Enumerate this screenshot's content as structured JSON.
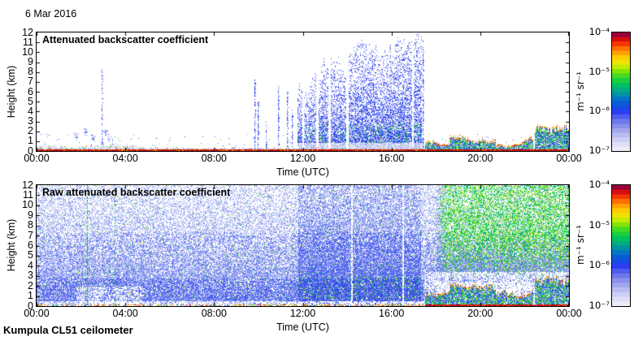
{
  "window": {
    "background": "#ffffff"
  },
  "header": {
    "date_label": "6 Mar 2016"
  },
  "footer": {
    "station_label": "Kumpula CL51 ceilometer"
  },
  "colormap": {
    "unit": "m⁻¹ sr⁻¹",
    "stops": [
      [
        0.0,
        "#F4F4FC"
      ],
      [
        0.05,
        "#E2E2F8"
      ],
      [
        0.12,
        "#C2C4F2"
      ],
      [
        0.19,
        "#989EEC"
      ],
      [
        0.26,
        "#6672EC"
      ],
      [
        0.33,
        "#2A3CF2"
      ],
      [
        0.39,
        "#0A52DC"
      ],
      [
        0.45,
        "#007CBE"
      ],
      [
        0.5,
        "#00A392"
      ],
      [
        0.56,
        "#00C25E"
      ],
      [
        0.62,
        "#2BD62B"
      ],
      [
        0.68,
        "#8FE600"
      ],
      [
        0.73,
        "#E0EE00"
      ],
      [
        0.78,
        "#FFD400"
      ],
      [
        0.84,
        "#FF9400"
      ],
      [
        0.89,
        "#FF4A00"
      ],
      [
        0.93,
        "#E61400"
      ],
      [
        0.97,
        "#AE0030"
      ],
      [
        1.0,
        "#6E004E"
      ]
    ]
  },
  "palette": {
    "blues": [
      "#2134EC",
      "#3D52F0",
      "#5F74F0",
      "#8396F2",
      "#A6B4F4",
      "#C3CCF6"
    ],
    "blues_raw": [
      "#B6BEF4",
      "#9AA6F2",
      "#7E8CF0",
      "#6274EE",
      "#4456EE",
      "#2A3CE8"
    ],
    "greens": [
      "#00AE8C",
      "#00C25E",
      "#2BD62B",
      "#7BE000"
    ],
    "warm": [
      "#E61400",
      "#FF4A00",
      "#FF9400",
      "#FFD400"
    ],
    "lavender": "#D8DAF2",
    "green_line": "#12C412",
    "surface_red": "#BE0000"
  },
  "chart_data": [
    {
      "type": "heatmap",
      "title": "Attenuated backscatter coefficient",
      "xlabel": "Time (UTC)",
      "ylabel": "Height (km)",
      "x_tick_labels": [
        "00:00",
        "04:00",
        "08:00",
        "12:00",
        "16:00",
        "20:00",
        "00:00"
      ],
      "x_tick_hours": [
        0,
        4,
        8,
        12,
        16,
        20,
        24
      ],
      "xlim_hours": [
        0,
        24
      ],
      "ylim_km": [
        0,
        12
      ],
      "y_tick_km": [
        0,
        1,
        2,
        3,
        4,
        5,
        6,
        7,
        8,
        9,
        10,
        11,
        12
      ],
      "colorbar_tick_labels": [
        "10⁻⁴",
        "10⁻⁵",
        "10⁻⁶",
        "10⁻⁷"
      ],
      "colorbar_range": [
        1e-07,
        0.0001
      ],
      "features": {
        "surface_layer": {
          "base_top_km": 0.3,
          "enhanced_intervals": [
            [
              1.7,
              4.9
            ],
            [
              0.0,
              1.3
            ]
          ]
        },
        "detached_patches": [
          {
            "t": 1.75,
            "km": 1.5
          },
          {
            "t": 2.2,
            "km": 2.0
          },
          {
            "t": 2.55,
            "km": 1.4
          },
          {
            "t": 3.1,
            "km": 1.9
          },
          {
            "t": 3.35,
            "km": 1.2
          }
        ],
        "spike_columns": [
          {
            "t": 2.93,
            "top_km": 8.3,
            "density": 0.4
          },
          {
            "t": 9.82,
            "top_km": 7.2,
            "density": 0.55
          },
          {
            "t": 9.97,
            "top_km": 5.0,
            "density": 0.5
          },
          {
            "t": 10.35,
            "top_km": 3.0,
            "density": 0.45
          },
          {
            "t": 10.9,
            "top_km": 6.6,
            "density": 0.6
          },
          {
            "t": 11.3,
            "top_km": 6.2,
            "density": 0.6
          },
          {
            "t": 11.5,
            "top_km": 4.2,
            "density": 0.5
          },
          {
            "t": 17.42,
            "top_km": 11.2,
            "density": 0.6
          }
        ],
        "plumes": [
          {
            "t0": 11.78,
            "t1": 13.92,
            "top_start_km": 6.2,
            "top_end_km": 8.8
          },
          {
            "t0": 14.05,
            "t1": 17.32,
            "top_start_km": 9.2,
            "top_end_km": 11.4
          }
        ],
        "gap_times": [
          12.0,
          12.65,
          13.2,
          14.0,
          16.95
        ],
        "evening_layers": [
          {
            "t0": 17.5,
            "t1": 18.6,
            "top_km": 0.9
          },
          {
            "t0": 18.62,
            "t1": 20.7,
            "top_km": 1.5
          },
          {
            "t0": 20.72,
            "t1": 22.4,
            "top_km": 0.95
          },
          {
            "t0": 22.45,
            "t1": 24.0,
            "top_km": 2.1
          }
        ]
      }
    },
    {
      "type": "heatmap",
      "title": "Raw attenuated backscatter coefficient",
      "xlabel": "Time (UTC)",
      "ylabel": "Height (km)",
      "x_tick_labels": [
        "00:00",
        "04:00",
        "08:00",
        "12:00",
        "16:00",
        "20:00",
        "00:00"
      ],
      "x_tick_hours": [
        0,
        4,
        8,
        12,
        16,
        20,
        24
      ],
      "xlim_hours": [
        0,
        24
      ],
      "ylim_km": [
        0,
        12
      ],
      "y_tick_km": [
        0,
        1,
        2,
        3,
        4,
        5,
        6,
        7,
        8,
        9,
        10,
        11,
        12
      ],
      "colorbar_tick_labels": [
        "10⁻⁴",
        "10⁻⁵",
        "10⁻⁶",
        "10⁻⁷"
      ],
      "colorbar_range": [
        1e-07,
        0.0001
      ],
      "features": {
        "noise": {
          "top_density": 0.28,
          "bottom_density": 0.88
        },
        "plume": {
          "t0": 11.78,
          "t1": 17.32,
          "extra_density": 0.22
        },
        "green_noise": {
          "t0": 18.0,
          "t1": 24.0,
          "fade_bottom_km": 2.4,
          "fade_top_km": 7.5
        },
        "green_lines": [
          {
            "t": 2.27,
            "density": 0.7
          },
          {
            "t": 3.5,
            "density": 0.33
          }
        ],
        "white_gap_times": [
          14.2,
          16.5
        ],
        "quiet_low": {
          "t0": 1.8,
          "t1": 4.8,
          "top_km": 2.0
        },
        "evening_layers": [
          {
            "t0": 17.5,
            "t1": 18.6,
            "top_km": 0.9
          },
          {
            "t0": 18.62,
            "t1": 20.7,
            "top_km": 1.5
          },
          {
            "t0": 20.72,
            "t1": 22.4,
            "top_km": 0.95
          },
          {
            "t0": 22.45,
            "t1": 24.0,
            "top_km": 2.1
          }
        ]
      }
    }
  ]
}
